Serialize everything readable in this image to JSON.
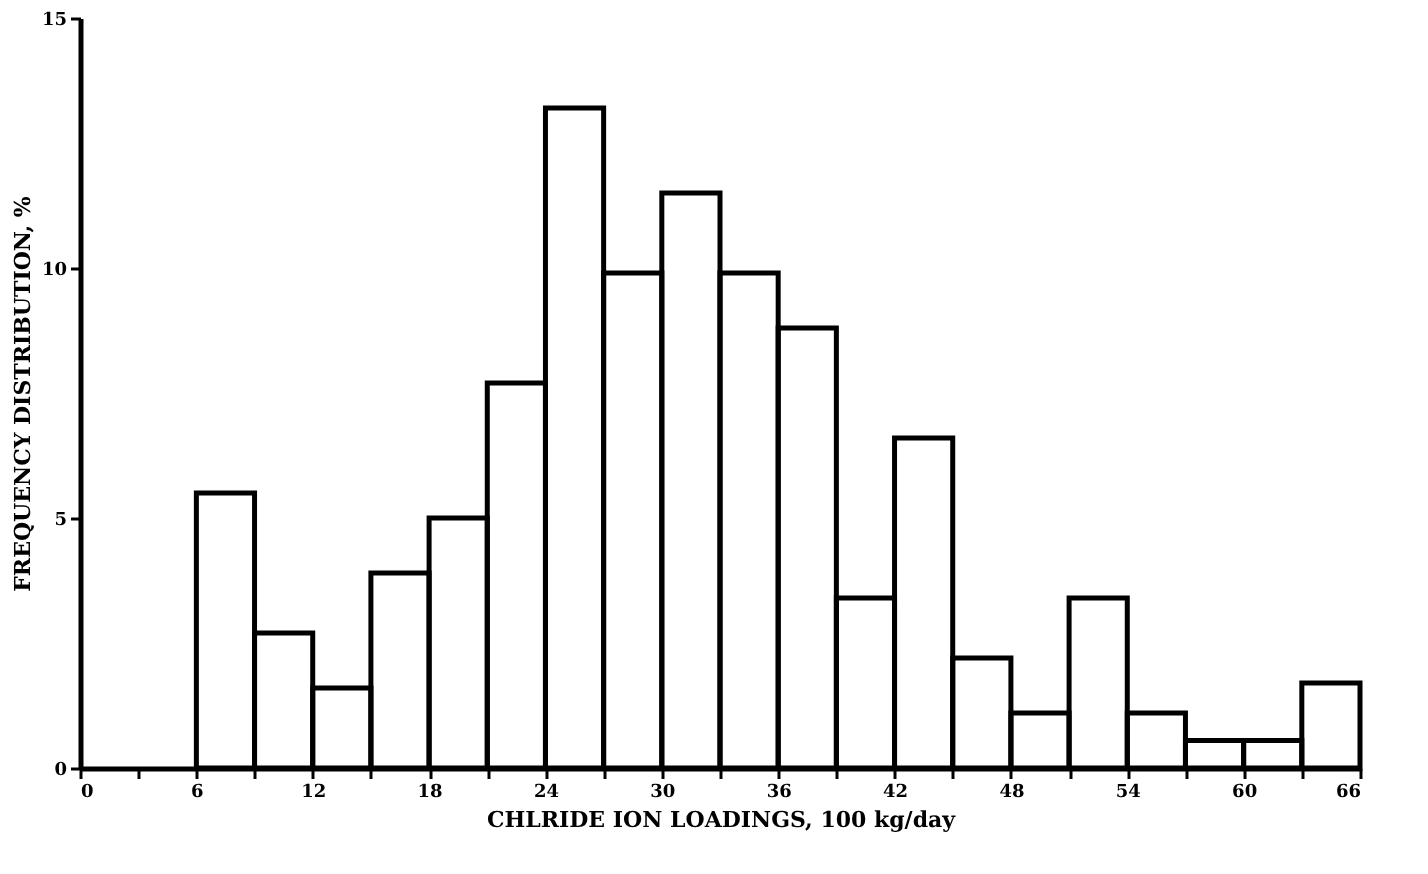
{
  "chart_data": {
    "type": "histogram",
    "xlabel": "CHLRIDE ION LOADINGS, 100 kg/day",
    "ylabel": "FREQUENCY DISTRIBUTION, %",
    "bins": [
      6,
      9,
      12,
      15,
      18,
      21,
      24,
      27,
      30,
      33,
      36,
      39,
      42,
      45,
      48,
      51,
      54,
      57,
      60,
      63,
      66
    ],
    "values": [
      5.5,
      2.7,
      1.6,
      3.9,
      5.0,
      7.7,
      13.2,
      9.9,
      11.5,
      9.9,
      8.8,
      3.4,
      6.6,
      2.2,
      1.1,
      3.4,
      1.1,
      0.55,
      0.55,
      1.7
    ],
    "color": "#000000",
    "xlim": [
      0,
      66
    ],
    "xticks": [
      0,
      {
        "value": 3,
        "label": null
      },
      6,
      {
        "value": 9,
        "label": null
      },
      12,
      {
        "value": 15,
        "label": null
      },
      18,
      {
        "value": 21,
        "label": null
      },
      24,
      {
        "value": 27,
        "label": null
      },
      30,
      {
        "value": 33,
        "label": null
      },
      36,
      {
        "value": 39,
        "label": null
      },
      42,
      {
        "value": 45,
        "label": null
      },
      48,
      {
        "value": 51,
        "label": null
      },
      54,
      {
        "value": 57,
        "label": null
      },
      60,
      {
        "value": 63,
        "label": null
      },
      66
    ],
    "ylim": [
      0,
      15
    ],
    "yticks": [
      0,
      5,
      10,
      15
    ],
    "grid": false
  }
}
